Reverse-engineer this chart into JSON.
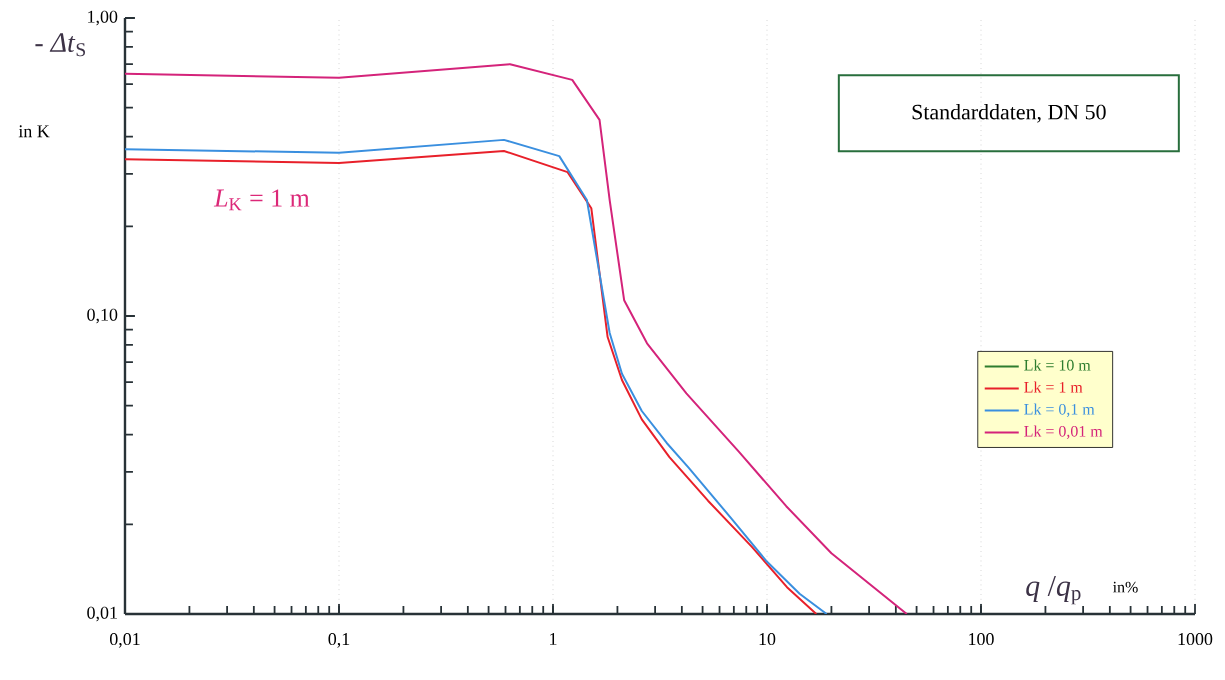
{
  "chart_data": {
    "type": "line",
    "xlabel": "*q* /*q*$_{p}$",
    "ylabel": "- *Δt*$_{S}$",
    "log": "xy",
    "grid": "x",
    "legend": "right",
    "line_style": "solid",
    "marker": "none",
    "xlim": [
      0.01,
      1000
    ],
    "ylim": [
      0.01,
      1
    ],
    "xticks": [
      {
        "value": 0.01,
        "label": "0,01"
      },
      {
        "value": 0.1,
        "label": "0,1"
      },
      1,
      10,
      100,
      1000
    ],
    "yticks": [
      {
        "value": 0.01,
        "label": "0,01"
      },
      {
        "value": 0.1,
        "label": "0,10"
      },
      {
        "value": 1,
        "label": "1,00"
      }
    ],
    "annotations": [
      "Standarddaten, DN 50",
      "*L*$_{K}$ = 1 m",
      "in K",
      "in%"
    ],
    "series": [
      {
        "name": "Lk = 10 m",
        "color": "#2e7d2e",
        "values": [
          null,
          null,
          null,
          null,
          null,
          null,
          null,
          null,
          null,
          null,
          null,
          null,
          null
        ]
      },
      {
        "name": "Lk = 1 m",
        "color": "#e8202a",
        "x": [
          0.01,
          0.1,
          0.59,
          1.17,
          1.51,
          1.8,
          2.1,
          2.6,
          3.5,
          5.3,
          8.5,
          12.4,
          17
        ],
        "values": [
          0.336,
          0.326,
          0.358,
          0.304,
          0.23,
          0.085,
          0.061,
          0.045,
          0.0336,
          0.024,
          0.0168,
          0.0123,
          0.01
        ]
      },
      {
        "name": "Lk = 0,1 m",
        "color": "#3a8fdf",
        "x": [
          0.01,
          0.1,
          0.59,
          1.07,
          1.44,
          1.84,
          2.1,
          2.6,
          3.4,
          4.3,
          6.9,
          9.9,
          14.2,
          19
        ],
        "values": [
          0.363,
          0.353,
          0.39,
          0.344,
          0.245,
          0.0877,
          0.064,
          0.048,
          0.0375,
          0.031,
          0.0207,
          0.0151,
          0.0117,
          0.01
        ]
      },
      {
        "name": "Lk = 0,01 m",
        "color": "#d4237a",
        "x": [
          0.01,
          0.1,
          0.63,
          1.23,
          1.65,
          1.84,
          2.15,
          2.75,
          4.2,
          7.4,
          12.3,
          20,
          45
        ],
        "values": [
          0.65,
          0.63,
          0.7,
          0.62,
          0.455,
          0.245,
          0.113,
          0.081,
          0.055,
          0.035,
          0.023,
          0.016,
          0.01
        ]
      }
    ]
  }
}
